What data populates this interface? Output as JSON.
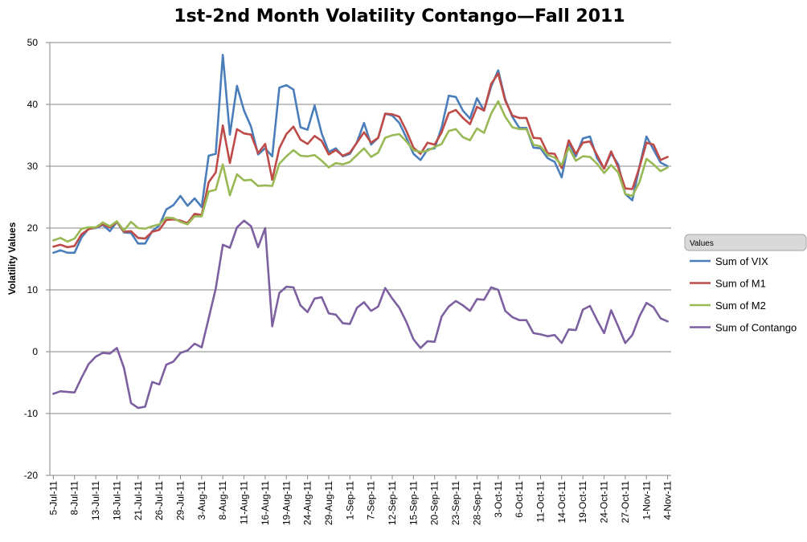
{
  "chart_data": {
    "type": "line",
    "title": "1st-2nd Month Volatility Contango—Fall 2011",
    "ylabel": "Volatility Values",
    "xlabel": "",
    "ylim": [
      -20,
      50
    ],
    "yticks": [
      -20,
      -10,
      0,
      10,
      20,
      30,
      40,
      50
    ],
    "grid": true,
    "legend_title": "Values",
    "legend_position": "right",
    "x": [
      "5-Jul-11",
      "6-Jul-11",
      "7-Jul-11",
      "8-Jul-11",
      "11-Jul-11",
      "12-Jul-11",
      "13-Jul-11",
      "14-Jul-11",
      "15-Jul-11",
      "18-Jul-11",
      "19-Jul-11",
      "20-Jul-11",
      "21-Jul-11",
      "22-Jul-11",
      "25-Jul-11",
      "26-Jul-11",
      "27-Jul-11",
      "28-Jul-11",
      "29-Jul-11",
      "1-Aug-11",
      "2-Aug-11",
      "3-Aug-11",
      "4-Aug-11",
      "5-Aug-11",
      "8-Aug-11",
      "9-Aug-11",
      "10-Aug-11",
      "11-Aug-11",
      "12-Aug-11",
      "15-Aug-11",
      "16-Aug-11",
      "17-Aug-11",
      "18-Aug-11",
      "19-Aug-11",
      "22-Aug-11",
      "23-Aug-11",
      "24-Aug-11",
      "25-Aug-11",
      "26-Aug-11",
      "29-Aug-11",
      "30-Aug-11",
      "31-Aug-11",
      "1-Sep-11",
      "2-Sep-11",
      "6-Sep-11",
      "7-Sep-11",
      "8-Sep-11",
      "9-Sep-11",
      "12-Sep-11",
      "13-Sep-11",
      "14-Sep-11",
      "15-Sep-11",
      "16-Sep-11",
      "19-Sep-11",
      "20-Sep-11",
      "21-Sep-11",
      "22-Sep-11",
      "23-Sep-11",
      "26-Sep-11",
      "27-Sep-11",
      "28-Sep-11",
      "29-Sep-11",
      "30-Sep-11",
      "3-Oct-11",
      "4-Oct-11",
      "5-Oct-11",
      "6-Oct-11",
      "7-Oct-11",
      "10-Oct-11",
      "11-Oct-11",
      "12-Oct-11",
      "13-Oct-11",
      "14-Oct-11",
      "17-Oct-11",
      "18-Oct-11",
      "19-Oct-11",
      "20-Oct-11",
      "21-Oct-11",
      "24-Oct-11",
      "25-Oct-11",
      "26-Oct-11",
      "27-Oct-11",
      "28-Oct-11",
      "31-Oct-11",
      "1-Nov-11",
      "2-Nov-11",
      "3-Nov-11",
      "4-Nov-11"
    ],
    "x_tick_labels": [
      "5-Jul-11",
      "8-Jul-11",
      "13-Jul-11",
      "18-Jul-11",
      "21-Jul-11",
      "26-Jul-11",
      "29-Jul-11",
      "3-Aug-11",
      "8-Aug-11",
      "11-Aug-11",
      "16-Aug-11",
      "19-Aug-11",
      "24-Aug-11",
      "29-Aug-11",
      "1-Sep-11",
      "7-Sep-11",
      "12-Sep-11",
      "15-Sep-11",
      "20-Sep-11",
      "23-Sep-11",
      "28-Sep-11",
      "3-Oct-11",
      "6-Oct-11",
      "11-Oct-11",
      "14-Oct-11",
      "19-Oct-11",
      "24-Oct-11",
      "27-Oct-11",
      "1-Nov-11",
      "4-Nov-11"
    ],
    "series": [
      {
        "name": "Sum of VIX",
        "color": "#4A7EBB",
        "values": [
          16.0,
          16.4,
          16.0,
          16.0,
          18.5,
          19.9,
          20.0,
          20.5,
          19.5,
          21.0,
          19.3,
          19.2,
          17.5,
          17.5,
          19.5,
          20.4,
          23.0,
          23.7,
          25.2,
          23.6,
          24.8,
          23.4,
          31.7,
          32.0,
          48.0,
          35.1,
          43.0,
          39.0,
          36.4,
          31.9,
          32.9,
          31.6,
          42.7,
          43.1,
          42.4,
          36.3,
          35.9,
          39.8,
          35.3,
          32.3,
          32.9,
          31.6,
          32.0,
          33.9,
          37.0,
          33.5,
          34.6,
          38.5,
          38.2,
          37.0,
          34.6,
          32.0,
          31.0,
          32.7,
          32.9,
          36.3,
          41.4,
          41.2,
          39.0,
          37.7,
          41.0,
          39.0,
          42.9,
          45.5,
          40.8,
          38.0,
          36.2,
          36.2,
          33.0,
          32.9,
          31.3,
          30.7,
          28.2,
          33.8,
          31.6,
          34.5,
          34.8,
          31.3,
          29.6,
          32.1,
          30.3,
          25.5,
          24.5,
          29.9,
          34.8,
          32.7,
          30.6,
          30.0
        ]
      },
      {
        "name": "Sum of M1",
        "color": "#BE4B48",
        "values": [
          17.0,
          17.3,
          16.9,
          17.1,
          19.0,
          19.8,
          20.1,
          20.6,
          20.1,
          21.0,
          19.4,
          19.5,
          18.4,
          18.3,
          19.4,
          19.7,
          21.3,
          21.4,
          21.2,
          20.8,
          22.3,
          22.1,
          27.4,
          29.0,
          36.6,
          30.5,
          36.0,
          35.3,
          35.1,
          32.1,
          33.6,
          27.8,
          32.9,
          35.2,
          36.4,
          34.3,
          33.6,
          34.9,
          34.1,
          31.9,
          32.6,
          31.7,
          32.2,
          33.8,
          35.5,
          33.8,
          34.6,
          38.5,
          38.4,
          38.0,
          35.7,
          33.0,
          32.0,
          33.8,
          33.5,
          35.5,
          38.6,
          39.1,
          37.8,
          36.8,
          39.6,
          39.0,
          43.3,
          45.0,
          40.6,
          38.2,
          37.8,
          37.8,
          34.6,
          34.5,
          32.1,
          32.0,
          29.7,
          34.2,
          32.0,
          33.8,
          34.0,
          31.8,
          29.6,
          32.4,
          29.8,
          26.4,
          26.3,
          29.8,
          33.8,
          33.5,
          31.0,
          31.5
        ]
      },
      {
        "name": "Sum of M2",
        "color": "#98B954",
        "values": [
          18.0,
          18.4,
          17.8,
          18.3,
          19.9,
          20.1,
          20.1,
          20.9,
          20.3,
          21.1,
          19.6,
          21.0,
          20.0,
          19.9,
          20.3,
          20.6,
          21.7,
          21.6,
          21.0,
          20.6,
          21.9,
          21.9,
          25.9,
          26.2,
          30.3,
          25.3,
          28.7,
          27.7,
          27.8,
          26.8,
          26.9,
          26.8,
          30.4,
          31.6,
          32.6,
          31.7,
          31.6,
          31.8,
          30.9,
          29.8,
          30.5,
          30.3,
          30.7,
          31.8,
          32.9,
          31.5,
          32.2,
          34.6,
          35.0,
          35.2,
          34.0,
          32.6,
          32.3,
          32.5,
          33.1,
          33.6,
          35.7,
          36.0,
          34.7,
          34.2,
          36.1,
          35.4,
          38.5,
          40.5,
          38.0,
          36.3,
          36.0,
          36.0,
          33.5,
          33.2,
          31.8,
          31.4,
          30.2,
          33.0,
          30.9,
          31.6,
          31.5,
          30.4,
          28.9,
          30.2,
          29.0,
          25.5,
          25.2,
          27.4,
          31.2,
          30.3,
          29.2,
          29.8
        ]
      },
      {
        "name": "Sum of Contango",
        "color": "#7D60A0",
        "values": [
          -6.8,
          -6.4,
          -6.5,
          -6.6,
          -4.2,
          -2.0,
          -0.8,
          -0.2,
          -0.3,
          0.6,
          -2.6,
          -8.3,
          -9.1,
          -8.9,
          -4.9,
          -5.3,
          -2.1,
          -1.6,
          -0.2,
          0.2,
          1.3,
          0.7,
          5.4,
          10.2,
          17.3,
          16.8,
          20.1,
          21.2,
          20.3,
          16.9,
          20.0,
          4.1,
          9.5,
          10.5,
          10.4,
          7.5,
          6.4,
          8.6,
          8.8,
          6.2,
          6.0,
          4.6,
          4.5,
          7.1,
          8.0,
          6.6,
          7.3,
          10.3,
          8.6,
          7.1,
          4.8,
          2.0,
          0.6,
          1.7,
          1.6,
          5.7,
          7.3,
          8.2,
          7.5,
          6.6,
          8.5,
          8.4,
          10.4,
          10.0,
          6.6,
          5.6,
          5.1,
          5.1,
          3.0,
          2.8,
          2.5,
          2.7,
          1.4,
          3.6,
          3.5,
          6.8,
          7.4,
          5.1,
          3.0,
          6.7,
          4.1,
          1.4,
          2.7,
          5.7,
          7.9,
          7.2,
          5.4,
          4.9
        ]
      }
    ]
  }
}
